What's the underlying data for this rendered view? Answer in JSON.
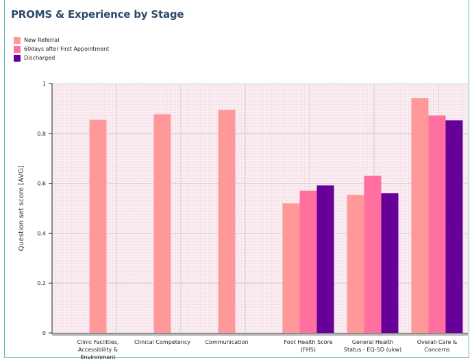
{
  "page_title": "PROMS & Experience by Stage",
  "colors": {
    "frame": "#5bb7ad",
    "grid_bg": "#fbeef3",
    "grid_fine": "#e9c9d6",
    "grid_major": "#c9c9c9"
  },
  "chart_data": {
    "type": "bar",
    "title": "PROMS & Experience by Stage",
    "ylabel": "Question set score [AVG]",
    "xlabel": "",
    "ylim": [
      0,
      1
    ],
    "yticks": [
      0,
      0.2,
      0.4,
      0.6,
      0.8,
      1
    ],
    "legend_position": "top-left",
    "grid": true,
    "categories": [
      "Clinic Facilities, Accessibility & Environment",
      "Clinical Competency",
      "Communication",
      "Foot Health Score (FHS)",
      "General Health Status - EQ-5D (ukw)",
      "Overall Care & Concerns"
    ],
    "category_lines": [
      [
        "Clinic Facilities,",
        "Accessibility &",
        "Environment"
      ],
      [
        "Clinical Competency"
      ],
      [
        "Communication"
      ],
      [
        "Foot Health Score",
        "(FHS)"
      ],
      [
        "General Health",
        "Status - EQ-5D (ukw)"
      ],
      [
        "Overall Care &",
        "Concerns"
      ]
    ],
    "series": [
      {
        "name": " New Referral",
        "color": "#ff9999",
        "values": [
          0.855,
          0.877,
          0.895,
          0.52,
          0.553,
          0.942
        ]
      },
      {
        "name": "60days after First Appointment",
        "color": "#ff6f9f",
        "values": [
          null,
          null,
          null,
          0.57,
          0.63,
          0.872
        ]
      },
      {
        "name": "Discharged",
        "color": "#660099",
        "values": [
          null,
          null,
          null,
          0.592,
          0.56,
          0.853
        ]
      }
    ]
  }
}
